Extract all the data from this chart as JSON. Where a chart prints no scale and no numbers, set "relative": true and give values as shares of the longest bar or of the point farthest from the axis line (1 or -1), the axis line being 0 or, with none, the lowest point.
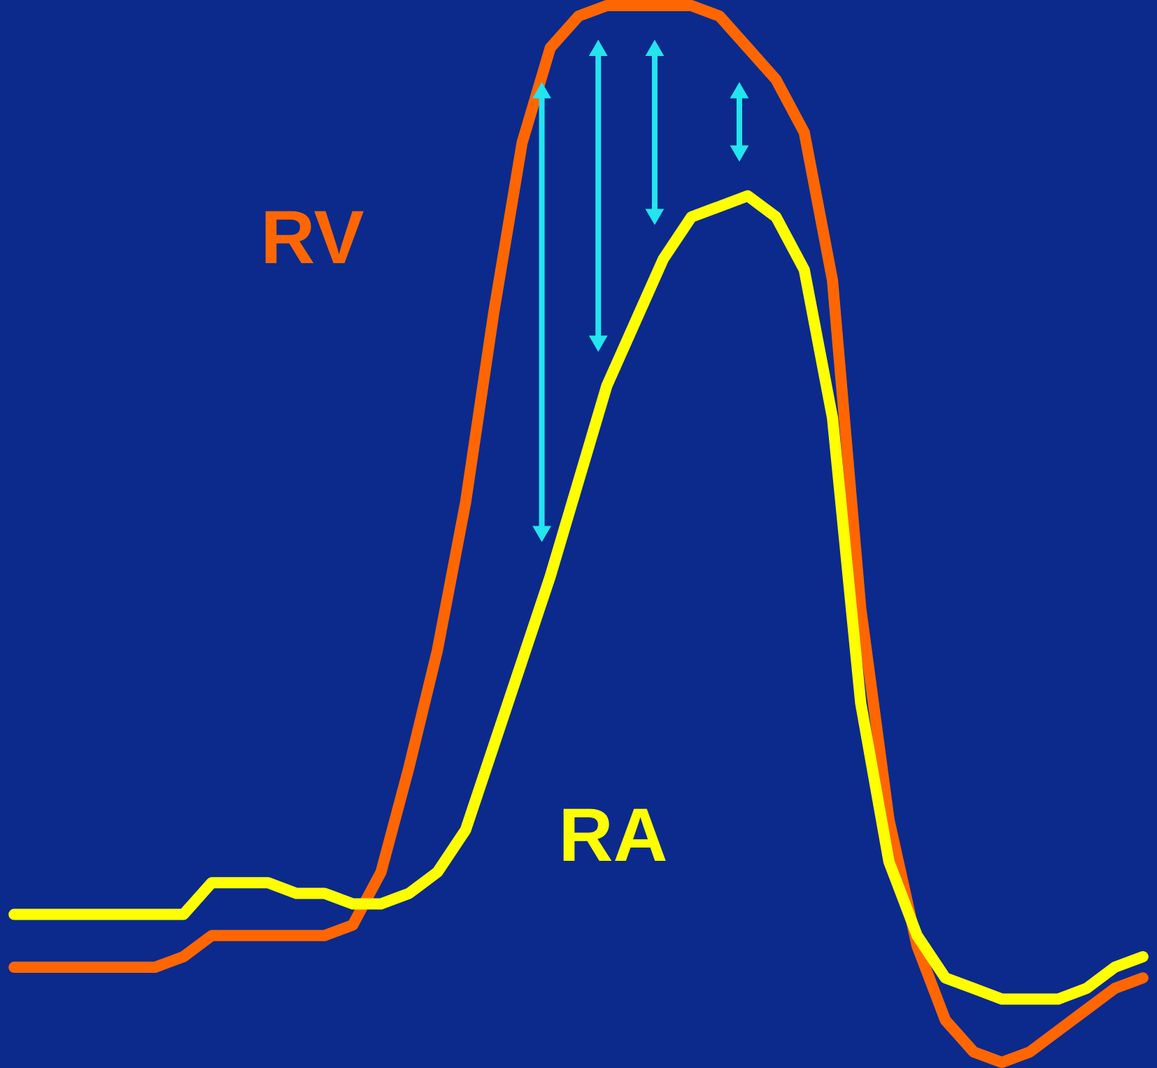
{
  "chart_data": {
    "type": "line",
    "relative": true,
    "grid": false,
    "marker": "none",
    "line_style": "solid",
    "categories": [
      null,
      null,
      null,
      null,
      null,
      null,
      null,
      null,
      null,
      null,
      null,
      null,
      null,
      null,
      null,
      null,
      null,
      null,
      null,
      null,
      null,
      null,
      null,
      null,
      null,
      null,
      null,
      null,
      null,
      null,
      null,
      null,
      null,
      null,
      null,
      null,
      null,
      null,
      null,
      null,
      null
    ],
    "series": [
      {
        "name": "RV",
        "color": "#ff6600",
        "values": [
          0.09,
          0.09,
          0.09,
          0.09,
          0.09,
          0.09,
          0.1,
          0.12,
          0.12,
          0.12,
          0.12,
          0.12,
          0.13,
          0.18,
          0.28,
          0.39,
          0.53,
          0.71,
          0.87,
          0.96,
          0.99,
          1.0,
          1.0,
          1.0,
          1.0,
          0.99,
          0.96,
          0.93,
          0.88,
          0.74,
          0.43,
          0.23,
          0.11,
          0.04,
          0.01,
          0.0,
          0.01,
          0.03,
          0.05,
          0.07,
          0.08
        ]
      },
      {
        "name": "RA",
        "color": "#ffff00",
        "values": [
          0.14,
          0.14,
          0.14,
          0.14,
          0.14,
          0.14,
          0.14,
          0.17,
          0.17,
          0.17,
          0.16,
          0.16,
          0.15,
          0.15,
          0.16,
          0.18,
          0.22,
          0.3,
          0.38,
          0.46,
          0.55,
          0.64,
          0.7,
          0.76,
          0.8,
          0.81,
          0.82,
          0.8,
          0.75,
          0.61,
          0.34,
          0.19,
          0.12,
          0.08,
          0.07,
          0.06,
          0.06,
          0.06,
          0.07,
          0.09,
          0.1
        ]
      }
    ]
  }
}
